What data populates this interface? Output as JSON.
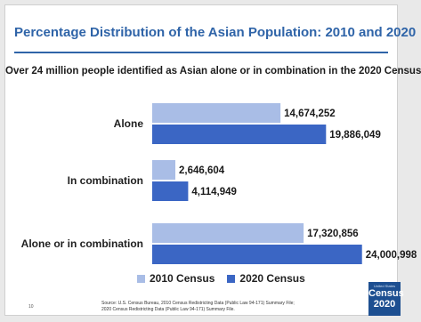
{
  "slide": {
    "title": "Percentage Distribution of the Asian Population: 2010 and 2020",
    "page_number": "10",
    "source_line1": "Source: U.S. Census Bureau, 2010 Census Redistricting Data (Public Law 94-171) Summary File;",
    "source_line2": "2020 Census Redistricting Data (Public Law 94-171) Summary File.",
    "logo_line1": "United States",
    "logo_line2": "Census",
    "logo_line3": "2020"
  },
  "colors": {
    "series_2010": "#a9bde6",
    "series_2020": "#3b66c4",
    "title": "#2f64a8"
  },
  "chart_data": {
    "type": "bar",
    "orientation": "horizontal",
    "subtitle": "Over 24 million people identified as Asian alone or in combination in the 2020 Census",
    "categories": [
      "Alone",
      "In combination",
      "Alone or in combination"
    ],
    "series": [
      {
        "name": "2010 Census",
        "values": [
          14674252,
          2646604,
          17320856
        ],
        "labels": [
          "14,674,252",
          "2,646,604",
          "17,320,856"
        ]
      },
      {
        "name": "2020 Census",
        "values": [
          19886049,
          4114949,
          24000998
        ],
        "labels": [
          "19,886,049",
          "4,114,949",
          "24,000,998"
        ]
      }
    ],
    "xlim": [
      0,
      28000000
    ],
    "grid": false,
    "legend_position": "bottom"
  }
}
